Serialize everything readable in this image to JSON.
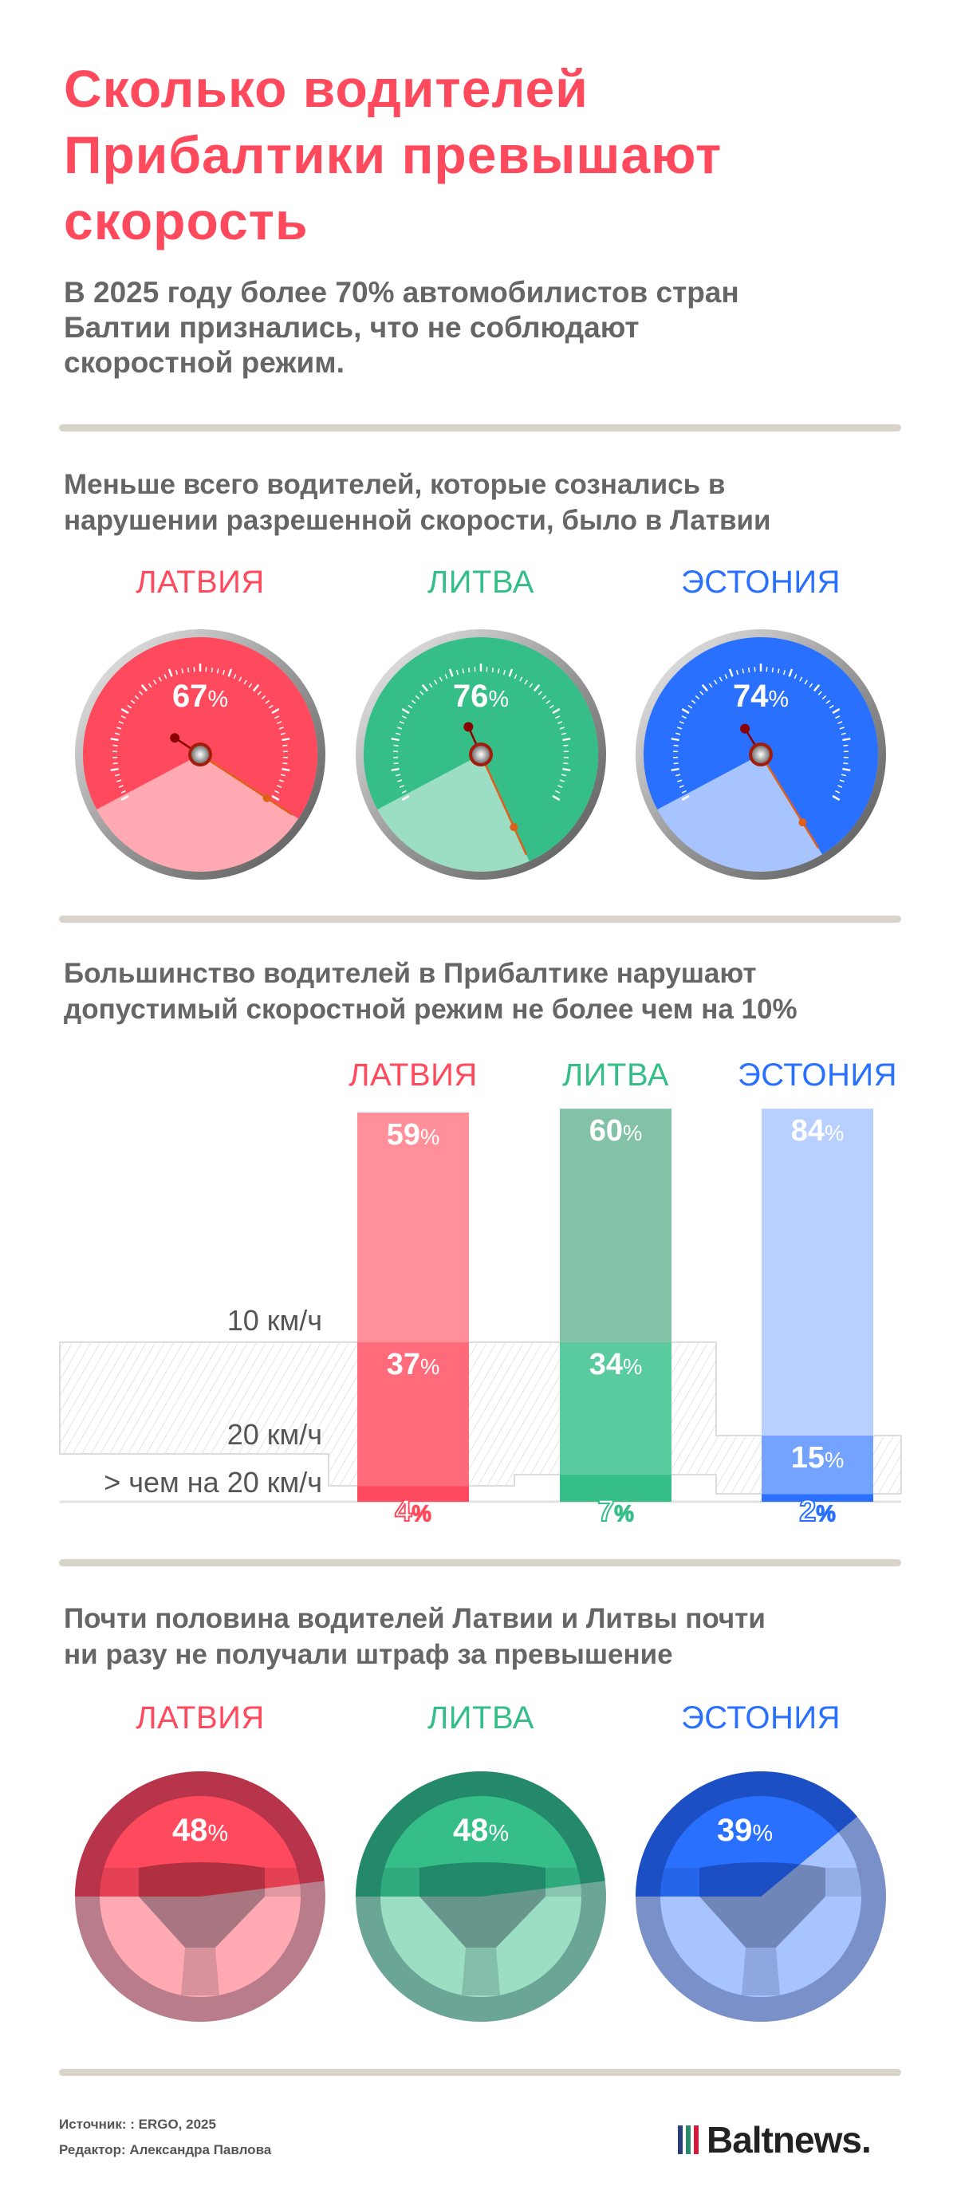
{
  "title": [
    "Сколько водителей",
    "Прибалтики превышают",
    "скорость"
  ],
  "subtitle": [
    "В 2025 году более 70% автомобилистов стран",
    "Балтии признались, что не соблюдают",
    "скоростной режим."
  ],
  "colors": {
    "latvia": "#ff4a5e",
    "lithuania": "#35be87",
    "estonia": "#2970ff",
    "heading": "#ff4a5e",
    "divider": "#d8d4cc"
  },
  "section1": {
    "heading": [
      "Меньше всего водителей, которые сознались в",
      "нарушении разрешенной скорости, было в Латвии"
    ],
    "countries": [
      {
        "label": "ЛАТВИЯ",
        "value": 67,
        "value_label": "67",
        "color": "#ff4a5e",
        "pale": "#ffaab2"
      },
      {
        "label": "ЛИТВА",
        "value": 76,
        "value_label": "76",
        "color": "#35be87",
        "pale": "#9cdec4"
      },
      {
        "label": "ЭСТОНИЯ",
        "value": 74,
        "value_label": "74",
        "color": "#2970ff",
        "pale": "#a8c4ff"
      }
    ]
  },
  "section2": {
    "heading": [
      "Большинство водителей в Прибалтике нарушают",
      "допустимый скоростной режим не более чем на 10%"
    ],
    "row_labels": [
      "10 км/ч",
      "20 км/ч",
      "> чем на 20 км/ч"
    ]
  },
  "chart_data": {
    "type": "bar",
    "stacked": true,
    "categories": [
      "ЛАТВИЯ",
      "ЛИТВА",
      "ЭСТОНИЯ"
    ],
    "series": [
      {
        "name": "10 км/ч",
        "values": [
          59,
          60,
          84
        ]
      },
      {
        "name": "20 км/ч",
        "values": [
          37,
          34,
          15
        ]
      },
      {
        "name": "> чем на 20 км/ч",
        "values": [
          4,
          7,
          2
        ]
      }
    ],
    "colors": [
      [
        "#ff9099",
        "#ff6b7a",
        "#ff4a5e"
      ],
      [
        "#84c2a7",
        "#5acb9e",
        "#35be87"
      ],
      [
        "#b8d0ff",
        "#74a2ff",
        "#2970ff"
      ]
    ],
    "unit": "%"
  },
  "section3": {
    "heading": [
      "Почти половина водителей Латвии и Литвы почти",
      "ни разу не получали штраф за превышение"
    ],
    "countries": [
      {
        "label": "ЛАТВИЯ",
        "value": 48,
        "value_label": "48"
      },
      {
        "label": "ЛИТВА",
        "value": 48,
        "value_label": "48"
      },
      {
        "label": "ЭСТОНИЯ",
        "value": 39,
        "value_label": "39"
      }
    ]
  },
  "percent_sign": "%",
  "footer": {
    "source": "Источник: : ERGO, 2025",
    "editor": "Редактор: Александра Павлова",
    "logo": "Baltnews."
  }
}
